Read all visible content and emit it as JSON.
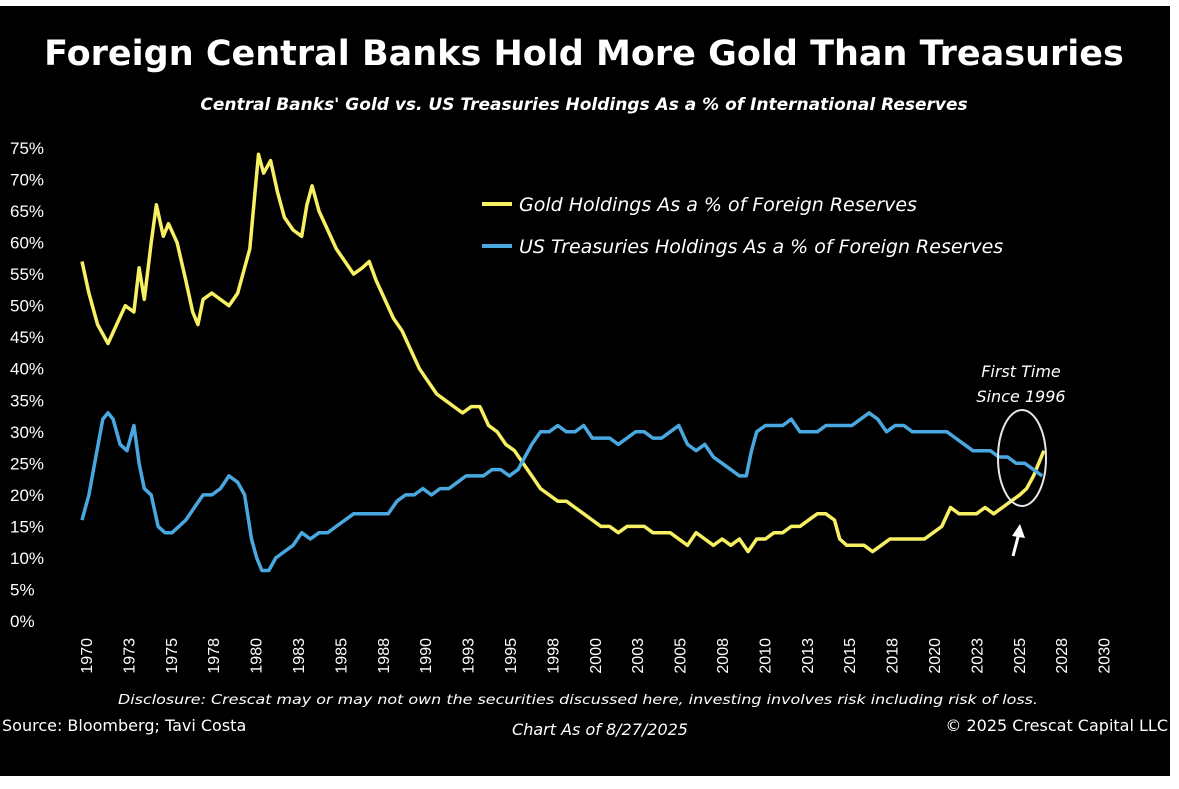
{
  "chart_data": {
    "type": "line",
    "title": "Foreign Central Banks Hold More Gold Than Treasuries",
    "subtitle": "Central Banks' Gold vs. US Treasuries Holdings As a % of International Reserves",
    "y_tick_labels": [
      "0%",
      "5%",
      "10%",
      "15%",
      "20%",
      "25%",
      "30%",
      "35%",
      "40%",
      "45%",
      "50%",
      "55%",
      "60%",
      "65%",
      "70%",
      "75%"
    ],
    "x_tick_labels": [
      "1970",
      "1973",
      "1975",
      "1978",
      "1980",
      "1983",
      "1985",
      "1988",
      "1990",
      "1993",
      "1995",
      "1998",
      "2000",
      "2003",
      "2005",
      "2008",
      "2010",
      "2013",
      "2015",
      "2018",
      "2020",
      "2023",
      "2025",
      "2028",
      "2030"
    ],
    "xlim": [
      1970,
      2030
    ],
    "ylim": [
      0,
      75
    ],
    "legend_placement": "top-right",
    "colors": {
      "gold": "#f7f063",
      "treasuries": "#4aa8e0",
      "background": "#000000"
    },
    "series": [
      {
        "name": "Gold Holdings As a % of Foreign Reserves",
        "color": "#f7f063",
        "points": [
          [
            1970.0,
            57
          ],
          [
            1970.4,
            52
          ],
          [
            1970.9,
            47
          ],
          [
            1971.5,
            44
          ],
          [
            1972.0,
            47
          ],
          [
            1972.5,
            50
          ],
          [
            1973.0,
            49
          ],
          [
            1973.3,
            56
          ],
          [
            1973.6,
            51
          ],
          [
            1974.0,
            60
          ],
          [
            1974.3,
            66
          ],
          [
            1974.7,
            61
          ],
          [
            1975.0,
            63
          ],
          [
            1975.5,
            60
          ],
          [
            1976.0,
            54
          ],
          [
            1976.4,
            49
          ],
          [
            1976.7,
            47
          ],
          [
            1977.0,
            51
          ],
          [
            1977.5,
            52
          ],
          [
            1978.0,
            51
          ],
          [
            1978.5,
            50
          ],
          [
            1979.0,
            52
          ],
          [
            1979.4,
            56
          ],
          [
            1979.7,
            59
          ],
          [
            1980.0,
            68
          ],
          [
            1980.2,
            74
          ],
          [
            1980.5,
            71
          ],
          [
            1980.9,
            73
          ],
          [
            1981.3,
            68
          ],
          [
            1981.7,
            64
          ],
          [
            1982.2,
            62
          ],
          [
            1982.7,
            61
          ],
          [
            1983.0,
            66
          ],
          [
            1983.3,
            69
          ],
          [
            1983.7,
            65
          ],
          [
            1984.2,
            62
          ],
          [
            1984.7,
            59
          ],
          [
            1985.2,
            57
          ],
          [
            1985.7,
            55
          ],
          [
            1986.2,
            56
          ],
          [
            1986.6,
            57
          ],
          [
            1987.0,
            54
          ],
          [
            1987.5,
            51
          ],
          [
            1988.0,
            48
          ],
          [
            1988.5,
            46
          ],
          [
            1989.0,
            43
          ],
          [
            1989.5,
            40
          ],
          [
            1990.0,
            38
          ],
          [
            1990.5,
            36
          ],
          [
            1991.0,
            35
          ],
          [
            1991.5,
            34
          ],
          [
            1992.0,
            33
          ],
          [
            1992.5,
            34
          ],
          [
            1993.0,
            34
          ],
          [
            1993.5,
            31
          ],
          [
            1994.0,
            30
          ],
          [
            1994.5,
            28
          ],
          [
            1995.0,
            27
          ],
          [
            1995.5,
            25
          ],
          [
            1996.0,
            23
          ],
          [
            1996.5,
            21
          ],
          [
            1997.0,
            20
          ],
          [
            1997.5,
            19
          ],
          [
            1998.0,
            19
          ],
          [
            1998.5,
            18
          ],
          [
            1999.0,
            17
          ],
          [
            1999.5,
            16
          ],
          [
            2000.0,
            15
          ],
          [
            2000.5,
            15
          ],
          [
            2001.0,
            14
          ],
          [
            2001.5,
            15
          ],
          [
            2002.0,
            15
          ],
          [
            2002.5,
            15
          ],
          [
            2003.0,
            14
          ],
          [
            2003.5,
            14
          ],
          [
            2004.0,
            14
          ],
          [
            2004.5,
            13
          ],
          [
            2005.0,
            12
          ],
          [
            2005.5,
            14
          ],
          [
            2006.0,
            13
          ],
          [
            2006.5,
            12
          ],
          [
            2007.0,
            13
          ],
          [
            2007.5,
            12
          ],
          [
            2008.0,
            13
          ],
          [
            2008.5,
            11
          ],
          [
            2009.0,
            13
          ],
          [
            2009.5,
            13
          ],
          [
            2010.0,
            14
          ],
          [
            2010.5,
            14
          ],
          [
            2011.0,
            15
          ],
          [
            2011.5,
            15
          ],
          [
            2012.0,
            16
          ],
          [
            2012.5,
            17
          ],
          [
            2013.0,
            17
          ],
          [
            2013.5,
            16
          ],
          [
            2013.8,
            13
          ],
          [
            2014.2,
            12
          ],
          [
            2014.7,
            12
          ],
          [
            2015.2,
            12
          ],
          [
            2015.7,
            11
          ],
          [
            2016.2,
            12
          ],
          [
            2016.7,
            13
          ],
          [
            2017.2,
            13
          ],
          [
            2017.7,
            13
          ],
          [
            2018.2,
            13
          ],
          [
            2018.7,
            13
          ],
          [
            2019.2,
            14
          ],
          [
            2019.7,
            15
          ],
          [
            2020.2,
            18
          ],
          [
            2020.7,
            17
          ],
          [
            2021.2,
            17
          ],
          [
            2021.7,
            17
          ],
          [
            2022.2,
            18
          ],
          [
            2022.7,
            17
          ],
          [
            2023.2,
            18
          ],
          [
            2023.7,
            19
          ],
          [
            2024.2,
            20
          ],
          [
            2024.6,
            21
          ],
          [
            2025.0,
            23
          ],
          [
            2025.3,
            25
          ],
          [
            2025.6,
            27
          ]
        ]
      },
      {
        "name": "US Treasuries Holdings As a % of Foreign Reserves",
        "color": "#4aa8e0",
        "points": [
          [
            1970.0,
            16
          ],
          [
            1970.4,
            20
          ],
          [
            1970.8,
            26
          ],
          [
            1971.2,
            32
          ],
          [
            1971.5,
            33
          ],
          [
            1971.8,
            32
          ],
          [
            1972.2,
            28
          ],
          [
            1972.6,
            27
          ],
          [
            1973.0,
            31
          ],
          [
            1973.3,
            25
          ],
          [
            1973.6,
            21
          ],
          [
            1974.0,
            20
          ],
          [
            1974.4,
            15
          ],
          [
            1974.8,
            14
          ],
          [
            1975.2,
            14
          ],
          [
            1975.6,
            15
          ],
          [
            1976.0,
            16
          ],
          [
            1976.5,
            18
          ],
          [
            1977.0,
            20
          ],
          [
            1977.5,
            20
          ],
          [
            1978.0,
            21
          ],
          [
            1978.5,
            23
          ],
          [
            1979.0,
            22
          ],
          [
            1979.4,
            20
          ],
          [
            1979.8,
            13
          ],
          [
            1980.1,
            10
          ],
          [
            1980.4,
            8
          ],
          [
            1980.8,
            8
          ],
          [
            1981.2,
            10
          ],
          [
            1981.7,
            11
          ],
          [
            1982.2,
            12
          ],
          [
            1982.7,
            14
          ],
          [
            1983.2,
            13
          ],
          [
            1983.7,
            14
          ],
          [
            1984.2,
            14
          ],
          [
            1984.7,
            15
          ],
          [
            1985.2,
            16
          ],
          [
            1985.7,
            17
          ],
          [
            1986.2,
            17
          ],
          [
            1986.7,
            17
          ],
          [
            1987.2,
            17
          ],
          [
            1987.7,
            17
          ],
          [
            1988.2,
            19
          ],
          [
            1988.7,
            20
          ],
          [
            1989.2,
            20
          ],
          [
            1989.7,
            21
          ],
          [
            1990.2,
            20
          ],
          [
            1990.7,
            21
          ],
          [
            1991.2,
            21
          ],
          [
            1991.7,
            22
          ],
          [
            1992.2,
            23
          ],
          [
            1992.7,
            23
          ],
          [
            1993.2,
            23
          ],
          [
            1993.7,
            24
          ],
          [
            1994.2,
            24
          ],
          [
            1994.7,
            23
          ],
          [
            1995.2,
            24
          ],
          [
            1995.6,
            26
          ],
          [
            1996.0,
            28
          ],
          [
            1996.5,
            30
          ],
          [
            1997.0,
            30
          ],
          [
            1997.5,
            31
          ],
          [
            1998.0,
            30
          ],
          [
            1998.5,
            30
          ],
          [
            1999.0,
            31
          ],
          [
            1999.5,
            29
          ],
          [
            2000.0,
            29
          ],
          [
            2000.5,
            29
          ],
          [
            2001.0,
            28
          ],
          [
            2001.5,
            29
          ],
          [
            2002.0,
            30
          ],
          [
            2002.5,
            30
          ],
          [
            2003.0,
            29
          ],
          [
            2003.5,
            29
          ],
          [
            2004.0,
            30
          ],
          [
            2004.5,
            31
          ],
          [
            2005.0,
            28
          ],
          [
            2005.5,
            27
          ],
          [
            2006.0,
            28
          ],
          [
            2006.5,
            26
          ],
          [
            2007.0,
            25
          ],
          [
            2007.5,
            24
          ],
          [
            2008.0,
            23
          ],
          [
            2008.4,
            23
          ],
          [
            2008.7,
            27
          ],
          [
            2009.0,
            30
          ],
          [
            2009.5,
            31
          ],
          [
            2010.0,
            31
          ],
          [
            2010.5,
            31
          ],
          [
            2011.0,
            32
          ],
          [
            2011.5,
            30
          ],
          [
            2012.0,
            30
          ],
          [
            2012.5,
            30
          ],
          [
            2013.0,
            31
          ],
          [
            2013.5,
            31
          ],
          [
            2014.0,
            31
          ],
          [
            2014.5,
            31
          ],
          [
            2015.0,
            32
          ],
          [
            2015.5,
            33
          ],
          [
            2016.0,
            32
          ],
          [
            2016.5,
            30
          ],
          [
            2017.0,
            31
          ],
          [
            2017.5,
            31
          ],
          [
            2018.0,
            30
          ],
          [
            2018.5,
            30
          ],
          [
            2019.0,
            30
          ],
          [
            2019.5,
            30
          ],
          [
            2020.0,
            30
          ],
          [
            2020.5,
            29
          ],
          [
            2021.0,
            28
          ],
          [
            2021.5,
            27
          ],
          [
            2022.0,
            27
          ],
          [
            2022.5,
            27
          ],
          [
            2023.0,
            26
          ],
          [
            2023.5,
            26
          ],
          [
            2024.0,
            25
          ],
          [
            2024.5,
            25
          ],
          [
            2025.0,
            24
          ],
          [
            2025.5,
            23
          ]
        ]
      }
    ],
    "annotation": {
      "line1": "First Time",
      "line2": "Since 1996"
    }
  },
  "footer": {
    "disclosure": "Disclosure: Crescat may or may not own the securities discussed here, investing involves risk including risk of loss.",
    "source": "Source: Bloomberg; Tavi Costa",
    "chart_as_of": "Chart As of 8/27/2025",
    "copyright": "© 2025 Crescat Capital LLC"
  }
}
